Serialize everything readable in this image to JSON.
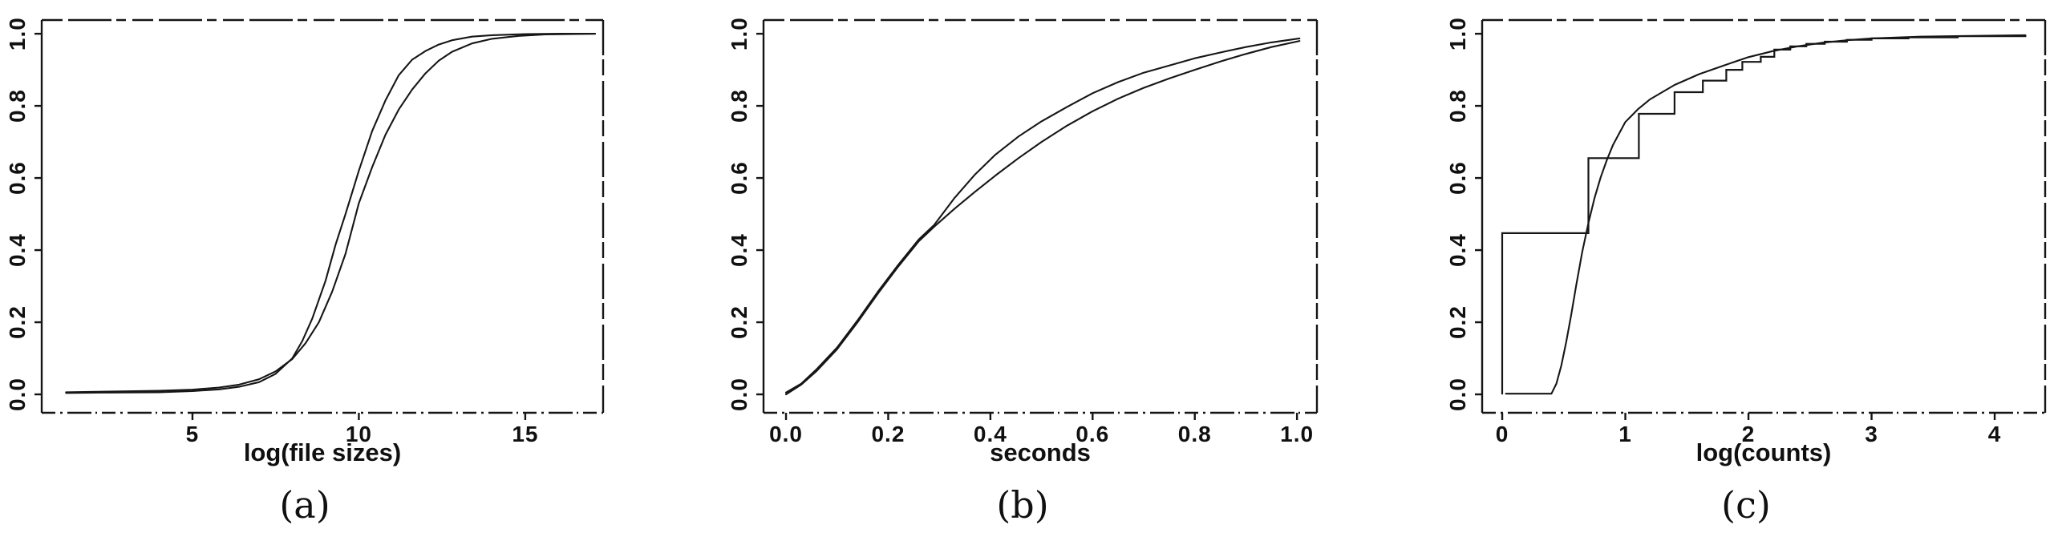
{
  "figure": {
    "background": "#ffffff",
    "ink_color": "#141414",
    "panel_labels": [
      "(a)",
      "(b)",
      "(c)"
    ]
  },
  "chart_data": [
    {
      "id": "a",
      "type": "line",
      "panel_label": "(a)",
      "xlabel": "log(file sizes)",
      "ylabel": "",
      "xlim": [
        0.47,
        17.34
      ],
      "ylim": [
        0,
        1
      ],
      "grid": false,
      "legend": "none",
      "x_ticks": [
        {
          "v": 5,
          "label": "5"
        },
        {
          "v": 10,
          "label": "10"
        },
        {
          "v": 15,
          "label": "15"
        }
      ],
      "y_ticks": [
        {
          "v": 0.0,
          "label": "0.0"
        },
        {
          "v": 0.2,
          "label": "0.2"
        },
        {
          "v": 0.4,
          "label": "0.4"
        },
        {
          "v": 0.6,
          "label": "0.6"
        },
        {
          "v": 0.8,
          "label": "0.8"
        },
        {
          "v": 1.0,
          "label": "1.0"
        }
      ],
      "series": [
        {
          "name": "cdf-left-steep",
          "kind": "line",
          "x": [
            1.2,
            2.5,
            4.0,
            5.0,
            5.8,
            6.4,
            7.0,
            7.5,
            8.0,
            8.3,
            8.6,
            9.0,
            9.3,
            9.6,
            10.0,
            10.4,
            10.8,
            11.2,
            11.6,
            12.0,
            12.4,
            12.8,
            13.4,
            14.0,
            15.0,
            16.0,
            17.1
          ],
          "y": [
            0.004,
            0.005,
            0.006,
            0.009,
            0.014,
            0.021,
            0.034,
            0.057,
            0.1,
            0.148,
            0.21,
            0.315,
            0.415,
            0.5,
            0.62,
            0.73,
            0.815,
            0.885,
            0.928,
            0.952,
            0.97,
            0.982,
            0.992,
            0.996,
            0.999,
            1.0,
            1.0
          ]
        },
        {
          "name": "cdf-right-shifted",
          "kind": "line",
          "x": [
            1.2,
            2.5,
            4.0,
            5.0,
            5.8,
            6.4,
            7.0,
            7.5,
            8.0,
            8.4,
            8.8,
            9.2,
            9.6,
            10.0,
            10.4,
            10.8,
            11.2,
            11.6,
            12.0,
            12.4,
            12.8,
            13.4,
            14.0,
            14.8,
            15.6,
            17.1
          ],
          "y": [
            0.006,
            0.008,
            0.01,
            0.013,
            0.019,
            0.027,
            0.042,
            0.064,
            0.098,
            0.142,
            0.2,
            0.285,
            0.39,
            0.53,
            0.63,
            0.72,
            0.79,
            0.845,
            0.89,
            0.925,
            0.95,
            0.973,
            0.986,
            0.994,
            0.998,
            1.0
          ]
        }
      ]
    },
    {
      "id": "b",
      "type": "line",
      "panel_label": "(b)",
      "xlabel": "seconds",
      "ylabel": "",
      "xlim": [
        -0.044,
        1.039
      ],
      "ylim": [
        0,
        1
      ],
      "grid": false,
      "legend": "none",
      "x_ticks": [
        {
          "v": 0.0,
          "label": "0.0"
        },
        {
          "v": 0.2,
          "label": "0.2"
        },
        {
          "v": 0.4,
          "label": "0.4"
        },
        {
          "v": 0.6,
          "label": "0.6"
        },
        {
          "v": 0.8,
          "label": "0.8"
        },
        {
          "v": 1.0,
          "label": "1.0"
        }
      ],
      "y_ticks": [
        {
          "v": 0.0,
          "label": "0.0"
        },
        {
          "v": 0.2,
          "label": "0.2"
        },
        {
          "v": 0.4,
          "label": "0.4"
        },
        {
          "v": 0.6,
          "label": "0.6"
        },
        {
          "v": 0.8,
          "label": "0.8"
        },
        {
          "v": 1.0,
          "label": "1.0"
        }
      ],
      "series": [
        {
          "name": "cdf-upper-branch",
          "kind": "line",
          "x": [
            0,
            0.03,
            0.06,
            0.1,
            0.14,
            0.18,
            0.22,
            0.26,
            0.29,
            0.33,
            0.37,
            0.41,
            0.455,
            0.5,
            0.55,
            0.6,
            0.65,
            0.7,
            0.75,
            0.8,
            0.85,
            0.9,
            0.95,
            1.005
          ],
          "y": [
            0.005,
            0.03,
            0.07,
            0.13,
            0.205,
            0.285,
            0.36,
            0.43,
            0.47,
            0.545,
            0.61,
            0.665,
            0.715,
            0.757,
            0.797,
            0.835,
            0.866,
            0.892,
            0.912,
            0.932,
            0.948,
            0.963,
            0.976,
            0.987
          ]
        },
        {
          "name": "cdf-lower-branch",
          "kind": "line",
          "x": [
            0,
            0.03,
            0.06,
            0.1,
            0.14,
            0.18,
            0.22,
            0.26,
            0.29,
            0.33,
            0.37,
            0.41,
            0.455,
            0.5,
            0.55,
            0.6,
            0.65,
            0.7,
            0.75,
            0.8,
            0.85,
            0.9,
            0.95,
            1.005
          ],
          "y": [
            0.0,
            0.027,
            0.065,
            0.125,
            0.2,
            0.28,
            0.355,
            0.425,
            0.465,
            0.515,
            0.562,
            0.607,
            0.655,
            0.7,
            0.745,
            0.785,
            0.82,
            0.85,
            0.876,
            0.9,
            0.923,
            0.944,
            0.963,
            0.98
          ]
        }
      ]
    },
    {
      "id": "c",
      "type": "line",
      "panel_label": "(c)",
      "xlabel": "log(counts)",
      "ylabel": "",
      "xlim": [
        -0.163,
        4.41
      ],
      "ylim": [
        0,
        1
      ],
      "grid": false,
      "legend": "none",
      "x_ticks": [
        {
          "v": 0,
          "label": "0"
        },
        {
          "v": 1,
          "label": "1"
        },
        {
          "v": 2,
          "label": "2"
        },
        {
          "v": 3,
          "label": "3"
        },
        {
          "v": 4,
          "label": "4"
        }
      ],
      "y_ticks": [
        {
          "v": 0.0,
          "label": "0.0"
        },
        {
          "v": 0.2,
          "label": "0.2"
        },
        {
          "v": 0.4,
          "label": "0.4"
        },
        {
          "v": 0.6,
          "label": "0.6"
        },
        {
          "v": 0.8,
          "label": "0.8"
        },
        {
          "v": 1.0,
          "label": "1.0"
        }
      ],
      "series": [
        {
          "name": "fitted-cdf-smooth",
          "kind": "line",
          "x": [
            0.03,
            0.4,
            0.44,
            0.48,
            0.52,
            0.56,
            0.6,
            0.65,
            0.7,
            0.75,
            0.8,
            0.85,
            0.9,
            1.0,
            1.1,
            1.2,
            1.4,
            1.6,
            1.8,
            2.0,
            2.2,
            2.4,
            2.6,
            2.8,
            3.0,
            3.4,
            3.8,
            4.25
          ],
          "y": [
            0.002,
            0.002,
            0.03,
            0.08,
            0.145,
            0.22,
            0.3,
            0.395,
            0.475,
            0.545,
            0.602,
            0.65,
            0.692,
            0.755,
            0.79,
            0.818,
            0.858,
            0.888,
            0.912,
            0.935,
            0.952,
            0.965,
            0.975,
            0.982,
            0.987,
            0.992,
            0.994,
            0.996
          ]
        },
        {
          "name": "empirical-cdf-steps",
          "kind": "step",
          "x": [
            0,
            0,
            0.7,
            1.11,
            1.4,
            1.63,
            1.82,
            1.95,
            2.1,
            2.21,
            2.34,
            2.47,
            2.62,
            2.8,
            3.0,
            3.3,
            3.7,
            4.25
          ],
          "y": [
            0,
            0.447,
            0.655,
            0.778,
            0.838,
            0.87,
            0.9,
            0.922,
            0.936,
            0.956,
            0.965,
            0.972,
            0.978,
            0.983,
            0.987,
            0.99,
            0.993,
            0.995
          ]
        }
      ]
    }
  ]
}
